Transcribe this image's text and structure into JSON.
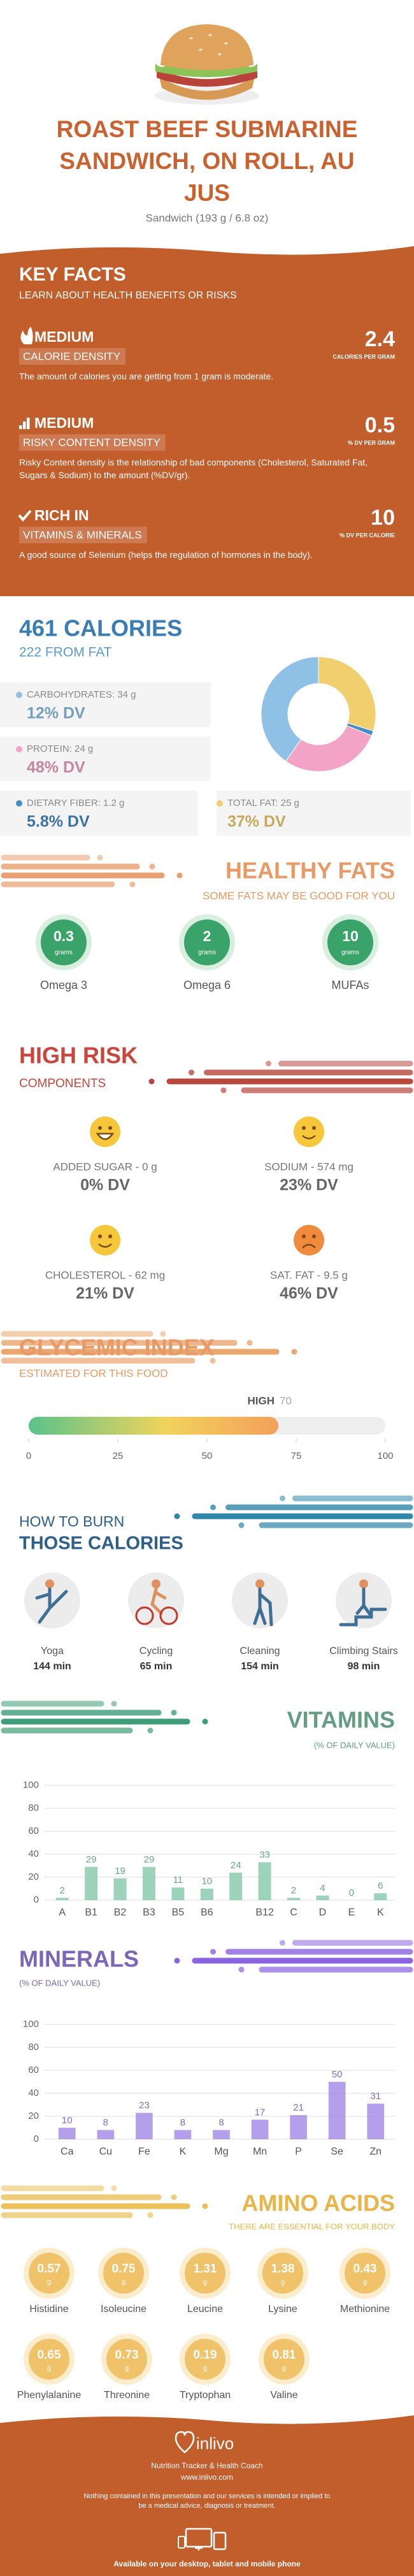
{
  "header": {
    "title_lines": [
      "ROAST BEEF SUBMARINE",
      "SANDWICH, ON ROLL, AU",
      "JUS"
    ],
    "subtitle": "Sandwich (193 g / 6.8 oz)"
  },
  "key_facts": {
    "title": "KEY FACTS",
    "subtitle": "LEARN ABOUT HEALTH BENEFITS OR RISKS",
    "facts": [
      {
        "level": "MEDIUM",
        "label": "CALORIE DENSITY",
        "value": 2.4,
        "unit": "CALORIES PER GRAM",
        "description": "The amount of calories you are getting from 1 gram is moderate."
      },
      {
        "level": "MEDIUM",
        "label": "RISKY CONTENT DENSITY",
        "value": 0.5,
        "unit": "% DV PER GRAM",
        "description": "Risky Content density is the relationship of bad components (Cholesterol, Saturated Fat, Sugars & Sodium) to the amount (%DV/gr)."
      },
      {
        "level": "RICH IN",
        "label": "VITAMINS & MINERALS",
        "value": 10,
        "unit": "% DV PER CALORIE",
        "description": "A good source of Selenium (helps the regulation of hormones in the body)."
      }
    ]
  },
  "calories": {
    "title": "461 CALORIES",
    "subtitle": "222 FROM FAT",
    "nutrients": [
      {
        "label": "CARBOHYDRATES: 34 g",
        "dv": "12% DV",
        "grams": 34,
        "color": "#8fc1e6"
      },
      {
        "label": "PROTEIN: 24 g",
        "dv": "48% DV",
        "grams": 24,
        "color": "#f2a3c6"
      },
      {
        "label": "DIETARY FIBER: 1.2 g",
        "dv": "5.8% DV",
        "grams": 1.2,
        "color": "#4a8cc4"
      },
      {
        "label": "TOTAL FAT: 25 g",
        "dv": "37% DV",
        "grams": 25,
        "color": "#f2cf6e"
      }
    ]
  },
  "healthy_fats": {
    "title": "HEALTHY FATS",
    "subtitle": "SOME FATS MAY BE GOOD FOR YOU",
    "unit": "grams",
    "items": [
      {
        "name": "Omega 3",
        "value": 0.3
      },
      {
        "name": "Omega 6",
        "value": 2
      },
      {
        "name": "MUFAs",
        "value": 10
      }
    ]
  },
  "high_risk": {
    "title": "HIGH RISK",
    "subtitle": "COMPONENTS",
    "items": [
      {
        "label": "ADDED SUGAR - 0 g",
        "dv": "0% DV",
        "face": "laugh",
        "color": "#f6c63b"
      },
      {
        "label": "SODIUM - 574 mg",
        "dv": "23% DV",
        "face": "smile",
        "color": "#f6c63b"
      },
      {
        "label": "CHOLESTEROL - 62 mg",
        "dv": "21% DV",
        "face": "smile",
        "color": "#f6c63b"
      },
      {
        "label": "SAT. FAT - 9.5 g",
        "dv": "46% DV",
        "face": "sad",
        "color": "#f08a3c"
      }
    ]
  },
  "glycemic": {
    "title": "GLYCEMIC INDEX",
    "subtitle": "ESTIMATED FOR THIS FOOD",
    "level": "HIGH",
    "value": 70,
    "range": [
      0,
      100
    ],
    "ticks": [
      0,
      25,
      50,
      75,
      100
    ]
  },
  "burn": {
    "title_top": "HOW TO BURN",
    "title": "THOSE CALORIES",
    "activities": [
      {
        "name": "Yoga",
        "minutes": "144 min"
      },
      {
        "name": "Cycling",
        "minutes": "65 min"
      },
      {
        "name": "Cleaning",
        "minutes": "154 min"
      },
      {
        "name": "Climbing Stairs",
        "minutes": "98 min"
      }
    ]
  },
  "chart_data": [
    {
      "type": "bar",
      "title": "VITAMINS",
      "subtitle": "(% OF DAILY VALUE)",
      "categories": [
        "A",
        "B1",
        "B2",
        "B3",
        "B5",
        "B6",
        null,
        "B12",
        "C",
        "D",
        "E",
        "K"
      ],
      "values": [
        2,
        29,
        19,
        29,
        11,
        10,
        24,
        33,
        2,
        4,
        0,
        6
      ],
      "color": "#7cc4a4",
      "ylim": [
        0,
        100
      ],
      "yticks": [
        0,
        20,
        40,
        60,
        80,
        100
      ],
      "grid": true
    },
    {
      "type": "bar",
      "title": "MINERALS",
      "subtitle": "(% OF DAILY VALUE)",
      "categories": [
        "Ca",
        "Cu",
        "Fe",
        "K",
        "Mg",
        "Mn",
        "P",
        "Se",
        "Zn"
      ],
      "values": [
        10,
        8,
        23,
        8,
        8,
        17,
        21,
        50,
        31
      ],
      "color": "#9b7fe6",
      "ylim": [
        0,
        100
      ],
      "yticks": [
        0,
        20,
        40,
        60,
        80,
        100
      ],
      "grid": true
    }
  ],
  "amino_acids": {
    "title": "AMINO ACIDS",
    "subtitle": "THERE ARE ESSENTIAL FOR YOUR BODY",
    "unit": "g",
    "items": [
      {
        "name": "Histidine",
        "value": 0.57
      },
      {
        "name": "Isoleucine",
        "value": 0.75
      },
      {
        "name": "Leucine",
        "value": 1.31
      },
      {
        "name": "Lysine",
        "value": 1.38
      },
      {
        "name": "Methionine",
        "value": 0.43
      },
      {
        "name": "Phenylalanine",
        "value": 0.65
      },
      {
        "name": "Threonine",
        "value": 0.73
      },
      {
        "name": "Tryptophan",
        "value": 0.19
      },
      {
        "name": "Valine",
        "value": 0.81
      }
    ]
  },
  "footer": {
    "brand": "inlivo",
    "tagline": "Nutrition Tracker & Health Coach",
    "url": "www.inlivo.com",
    "disclaimer": "Nothing contained in this presentation and our services is intended or implied to be a medical advice, diagnosis or treatment.",
    "availability": "Available on your desktop, tablet and mobile phone"
  }
}
